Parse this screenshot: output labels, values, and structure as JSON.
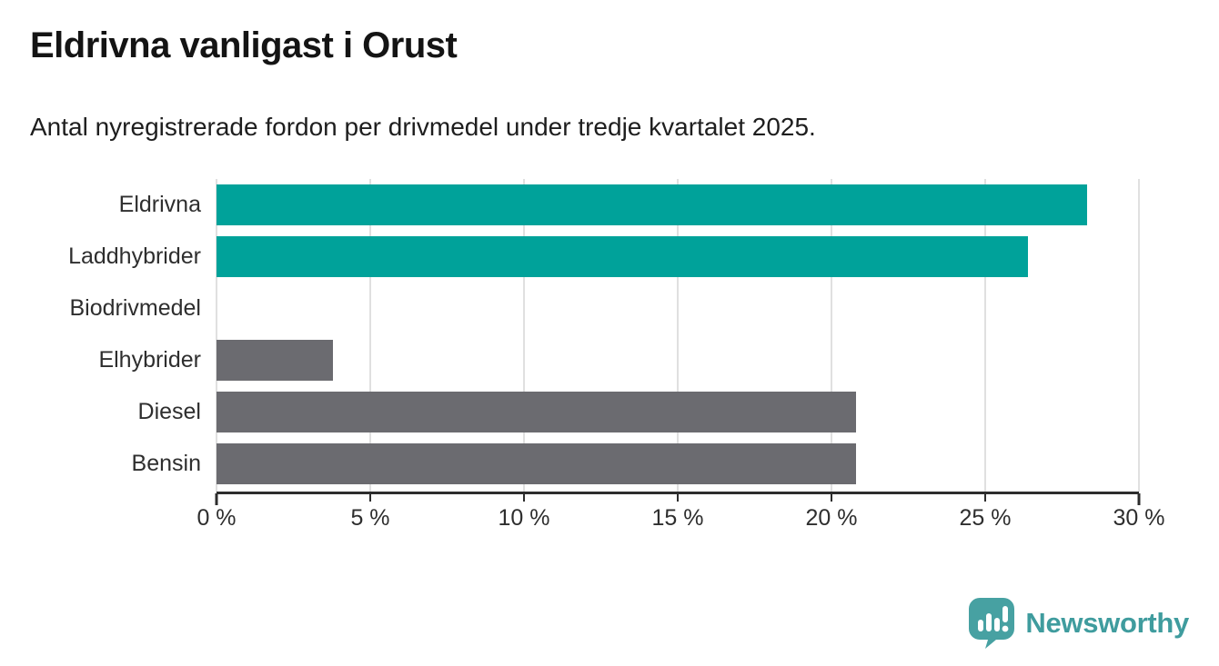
{
  "header": {
    "title": "Eldrivna vanligast i Orust",
    "subtitle": "Antal nyregistrerade fordon per drivmedel under tredje kvartalet 2025."
  },
  "chart_data": {
    "type": "bar",
    "orientation": "horizontal",
    "title": "Eldrivna vanligast i Orust",
    "subtitle": "Antal nyregistrerade fordon per drivmedel under tredje kvartalet 2025.",
    "categories": [
      "Eldrivna",
      "Laddhybrider",
      "Biodrivmedel",
      "Elhybrider",
      "Diesel",
      "Bensin"
    ],
    "values": [
      28.3,
      26.4,
      0,
      3.8,
      20.8,
      20.8
    ],
    "unit": "%",
    "xlabel": "",
    "ylabel": "",
    "xlim": [
      0,
      30
    ],
    "x_ticks": [
      0,
      5,
      10,
      15,
      20,
      25,
      30
    ],
    "x_tick_labels": [
      "0 %",
      "5 %",
      "10 %",
      "15 %",
      "20 %",
      "25 %",
      "30 %"
    ],
    "bar_colors": [
      "#00a29a",
      "#00a29a",
      "#6b6b70",
      "#6b6b70",
      "#6b6b70",
      "#6b6b70"
    ],
    "grid": "vertical-gridlines-on",
    "legend": "none"
  },
  "colors": {
    "accent_teal": "#00a29a",
    "neutral_gray": "#6b6b70",
    "gridline": "#e0e0e0",
    "axis": "#2d2d2d",
    "logo_teal": "#3f9c9e"
  },
  "footer": {
    "brand": "Newsworthy"
  }
}
